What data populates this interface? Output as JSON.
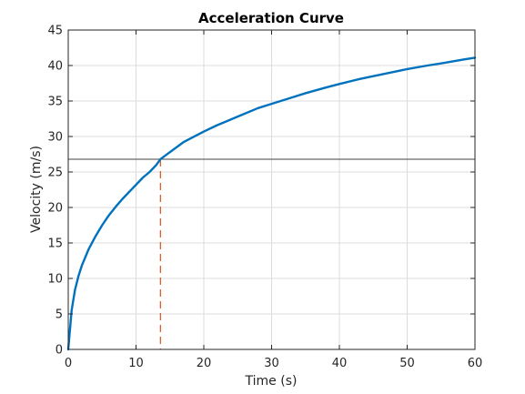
{
  "chart_data": {
    "type": "line",
    "title": "Acceleration Curve",
    "xlabel": "Time (s)",
    "ylabel": "Velocity (m/s)",
    "xlim": [
      0,
      60
    ],
    "ylim": [
      0,
      45
    ],
    "xticks": [
      0,
      10,
      20,
      30,
      40,
      50,
      60
    ],
    "yticks": [
      0,
      5,
      10,
      15,
      20,
      25,
      30,
      35,
      40,
      45
    ],
    "grid": true,
    "series": [
      {
        "color": "#0072bd",
        "x": [
          0,
          0.5,
          1,
          1.5,
          2,
          3,
          4,
          5,
          6,
          7,
          8,
          9,
          10,
          11,
          12,
          13,
          13.6,
          15,
          17,
          20,
          22,
          25,
          28,
          30,
          33,
          35,
          38,
          40,
          43,
          45,
          48,
          50,
          53,
          55,
          58,
          60
        ],
        "y": [
          0,
          5.5,
          8.4,
          10.3,
          11.8,
          14.1,
          15.9,
          17.5,
          18.9,
          20.1,
          21.2,
          22.2,
          23.2,
          24.2,
          25.0,
          26.0,
          26.8,
          27.8,
          29.2,
          30.7,
          31.6,
          32.8,
          34.0,
          34.6,
          35.5,
          36.1,
          36.9,
          37.4,
          38.1,
          38.5,
          39.1,
          39.5,
          40.0,
          40.3,
          40.8,
          41.1
        ]
      }
    ],
    "reference_line": {
      "y": 26.8,
      "color": "#404040"
    },
    "marker_line": {
      "x": 13.6,
      "y": 26.8,
      "color": "#d95319",
      "style": "dashed"
    }
  }
}
